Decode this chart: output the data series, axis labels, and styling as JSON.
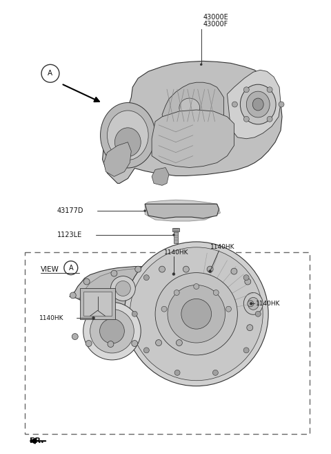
{
  "bg_color": "#ffffff",
  "fig_width": 4.8,
  "fig_height": 6.57,
  "dpi": 100,
  "top_label1": "43000E",
  "top_label2": "43000F",
  "label_43177D": "43177D",
  "label_1123LE": "1123LE",
  "label_A_top": "A",
  "label_VIEW_A": "VIEW",
  "label_A_view": "A",
  "label_FR": "FR.",
  "label_1140HK_tl": "1140HK",
  "label_1140HK_tr": "1140HK",
  "label_1140HK_l": "1140HK",
  "label_1140HK_r": "1140HK",
  "line_color": "#333333",
  "text_color": "#111111",
  "part_color_main": "#c0c0c0",
  "part_color_dark": "#909090",
  "part_color_light": "#d8d8d8",
  "part_color_mid": "#b0b0b0"
}
